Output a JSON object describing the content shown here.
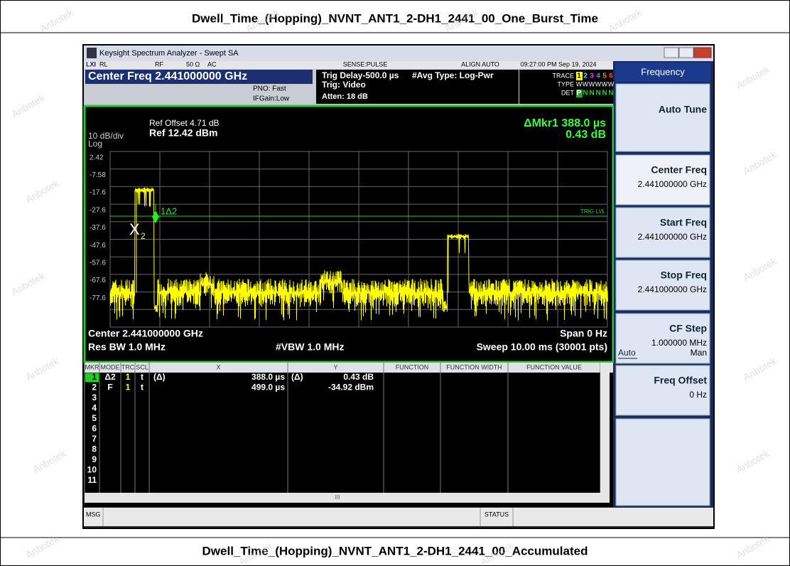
{
  "header": {
    "title": "Dwell_Time_(Hopping)_NVNT_ANT1_2-DH1_2441_00_One_Burst_Time"
  },
  "footer": {
    "title": "Dwell_Time_(Hopping)_NVNT_ANT1_2-DH1_2441_00_Accumulated"
  },
  "watermark": "Anbotek",
  "window": {
    "logo": "LXI",
    "title": "Keysight Spectrum Analyzer - Swept SA"
  },
  "status": {
    "rl": "RL",
    "rf": "RF",
    "impedance": "50 Ω",
    "coupling": "AC",
    "sense": "SENSE:PULSE",
    "align": "ALIGN AUTO",
    "datetime": "09:27:00 PM Sep 19, 2024",
    "center_freq": "Center Freq 2.441000000 GHz",
    "pno": "PNO: Fast",
    "ifgain": "IFGain:Low",
    "trig_delay": "Trig Delay-500.0 µs",
    "trig": "Trig: Video",
    "atten": "Atten: 18 dB",
    "avg": "#Avg Type: Log-Pwr",
    "trace_label": "TRACE",
    "trace": [
      "1",
      "2",
      "3",
      "4",
      "5",
      "6"
    ],
    "type_label": "TYPE",
    "type": [
      "W",
      "W",
      "W",
      "W",
      "W",
      "W"
    ],
    "det_label": "DET",
    "det": [
      "P",
      "N",
      "N",
      "N",
      "N",
      "N"
    ]
  },
  "plot": {
    "ref_offset": "Ref Offset 4.71 dB",
    "ref": "Ref 12.42 dBm",
    "scale": "10 dB/div",
    "log": "Log",
    "marker_readout": "ΔMkr1 388.0 µs",
    "marker_value": "0.43 dB",
    "yticks": [
      "2.42",
      "-7.58",
      "-17.6",
      "-27.6",
      "-37.6",
      "-47.6",
      "-57.6",
      "-67.6",
      "-77.6"
    ],
    "trig_lvl": "TRIG LVL",
    "marker1": "1Δ2",
    "marker2": "X",
    "marker2_sub": "2",
    "center": "Center 2.441000000 GHz",
    "span": "Span 0 Hz",
    "rbw": "Res BW 1.0 MHz",
    "vbw": "#VBW 1.0 MHz",
    "sweep": "Sweep  10.00 ms (30001 pts)"
  },
  "table": {
    "headers": [
      "MKR",
      "MODE",
      "TRC",
      "SCL",
      "X",
      "Y",
      "FUNCTION",
      "FUNCTION WIDTH",
      "FUNCTION VALUE"
    ],
    "rows": [
      {
        "mkr": "1",
        "mode": "Δ2",
        "trc": "1",
        "scl": "t",
        "x_ref": "(Δ)",
        "x": "388.0 µs",
        "y_ref": "(Δ)",
        "y": "0.43 dB"
      },
      {
        "mkr": "2",
        "mode": "F",
        "trc": "1",
        "scl": "t",
        "x": "499.0 µs",
        "y": "-34.92 dBm"
      },
      {
        "mkr": "3"
      },
      {
        "mkr": "4"
      },
      {
        "mkr": "5"
      },
      {
        "mkr": "6"
      },
      {
        "mkr": "7"
      },
      {
        "mkr": "8"
      },
      {
        "mkr": "9"
      },
      {
        "mkr": "10"
      },
      {
        "mkr": "11"
      }
    ],
    "scroll": "III"
  },
  "menu": {
    "title": "Frequency",
    "keys": [
      {
        "label": "Auto Tune"
      },
      {
        "label": "Center Freq",
        "value": "2.441000000 GHz"
      },
      {
        "label": "Start Freq",
        "value": "2.441000000 GHz"
      },
      {
        "label": "Stop Freq",
        "value": "2.441000000 GHz"
      },
      {
        "label": "CF Step",
        "value": "1.000000 MHz",
        "options": [
          "Auto",
          "Man"
        ]
      },
      {
        "label": "Freq Offset",
        "value": "0 Hz"
      }
    ]
  },
  "bottom": {
    "msg": "MSG",
    "status": "STATUS"
  }
}
